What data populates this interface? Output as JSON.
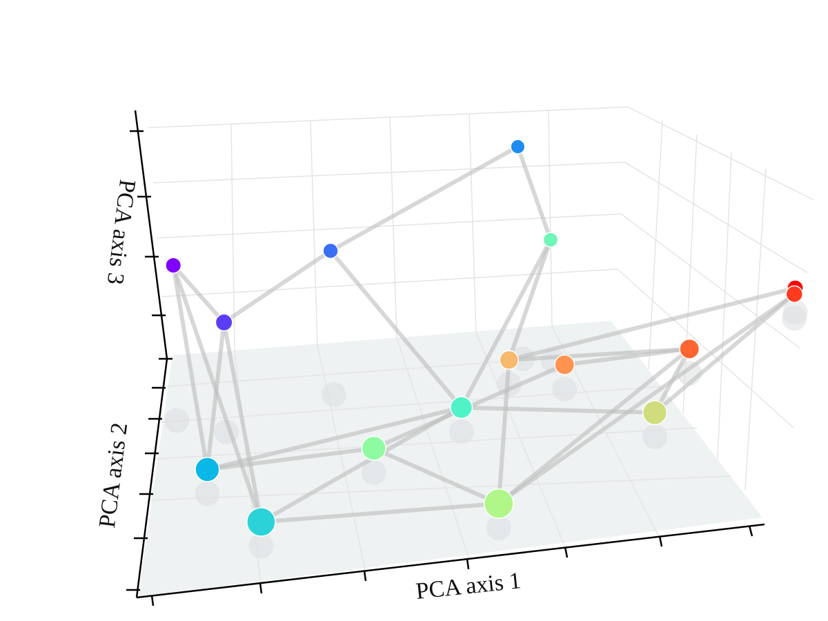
{
  "chart_data": {
    "type": "scatter",
    "projection": "3d",
    "xlabel": "PCA axis 1",
    "ylabel": "PCA axis 2",
    "zlabel": "PCA axis 3",
    "xlim": [
      0,
      6
    ],
    "ylim": [
      0,
      4
    ],
    "zlim": [
      0,
      4
    ],
    "grid": true,
    "tick_labels_shown": false,
    "colormap": "rainbow",
    "points": [
      {
        "id": 0,
        "x": 0.1,
        "y": 3.3,
        "z": 2.3,
        "color": "#7f00ff"
      },
      {
        "id": 1,
        "x": 0.6,
        "y": 3.0,
        "z": 1.5,
        "color": "#5a3df6"
      },
      {
        "id": 2,
        "x": 1.6,
        "y": 3.4,
        "z": 2.1,
        "color": "#3a6ef3"
      },
      {
        "id": 3,
        "x": 3.4,
        "y": 3.6,
        "z": 3.3,
        "color": "#1d8df0"
      },
      {
        "id": 4,
        "x": 0.5,
        "y": 2.0,
        "z": 0.0,
        "color": "#09b8e6"
      },
      {
        "id": 5,
        "x": 1.1,
        "y": 1.0,
        "z": 0.0,
        "color": "#2bd3d9"
      },
      {
        "id": 6,
        "x": 2.9,
        "y": 2.5,
        "z": 0.0,
        "color": "#50f2c8"
      },
      {
        "id": 7,
        "x": 3.7,
        "y": 3.5,
        "z": 1.7,
        "color": "#6ff6b8"
      },
      {
        "id": 8,
        "x": 2.1,
        "y": 2.0,
        "z": 0.0,
        "color": "#8ffba0"
      },
      {
        "id": 9,
        "x": 3.4,
        "y": 0.8,
        "z": 0.0,
        "color": "#b0f689"
      },
      {
        "id": 10,
        "x": 4.8,
        "y": 2.0,
        "z": 0.0,
        "color": "#d1dc7d"
      },
      {
        "id": 11,
        "x": 3.3,
        "y": 3.2,
        "z": 0.0,
        "color": "#f6b96e"
      },
      {
        "id": 12,
        "x": 3.85,
        "y": 3.0,
        "z": 0.0,
        "color": "#ff9350"
      },
      {
        "id": 13,
        "x": 5.05,
        "y": 3.0,
        "z": 0.0,
        "color": "#ff6530"
      },
      {
        "id": 14,
        "x": 6.0,
        "y": 3.7,
        "z": 0.0,
        "color": "#ff3a1e"
      },
      {
        "id": 15,
        "x": 6.0,
        "y": 3.8,
        "z": 0.0,
        "color": "#ff0000"
      }
    ],
    "edges": [
      [
        0,
        1
      ],
      [
        1,
        2
      ],
      [
        2,
        3
      ],
      [
        3,
        7
      ],
      [
        7,
        11
      ],
      [
        11,
        15
      ],
      [
        15,
        14
      ],
      [
        0,
        4
      ],
      [
        0,
        5
      ],
      [
        1,
        4
      ],
      [
        1,
        5
      ],
      [
        2,
        6
      ],
      [
        4,
        8
      ],
      [
        4,
        6
      ],
      [
        5,
        6
      ],
      [
        5,
        9
      ],
      [
        8,
        12
      ],
      [
        8,
        9
      ],
      [
        7,
        6
      ],
      [
        6,
        10
      ],
      [
        11,
        13
      ],
      [
        12,
        13
      ],
      [
        13,
        9
      ],
      [
        14,
        9
      ],
      [
        14,
        10
      ],
      [
        13,
        10
      ],
      [
        9,
        11
      ]
    ]
  }
}
